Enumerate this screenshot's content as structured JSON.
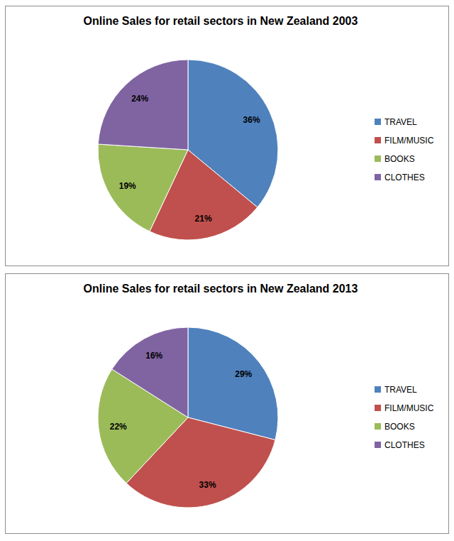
{
  "chart_data": [
    {
      "type": "pie",
      "title": "Online Sales for retail sectors in New Zealand 2003",
      "categories": [
        "TRAVEL",
        "FILM/MUSIC",
        "BOOKS",
        "CLOTHES"
      ],
      "values": [
        36,
        21,
        19,
        24
      ],
      "value_labels": [
        "36%",
        "21%",
        "19%",
        "24%"
      ],
      "colors": [
        "#4f81bd",
        "#c0504d",
        "#9bbb59",
        "#8064a2"
      ],
      "data_labels": true,
      "legend": "right"
    },
    {
      "type": "pie",
      "title": "Online Sales for retail sectors in New Zealand 2013",
      "categories": [
        "TRAVEL",
        "FILM/MUSIC",
        "BOOKS",
        "CLOTHES"
      ],
      "values": [
        29,
        33,
        22,
        16
      ],
      "value_labels": [
        "29%",
        "33%",
        "22%",
        "16%"
      ],
      "colors": [
        "#4f81bd",
        "#c0504d",
        "#9bbb59",
        "#8064a2"
      ],
      "data_labels": true,
      "legend": "right"
    }
  ]
}
